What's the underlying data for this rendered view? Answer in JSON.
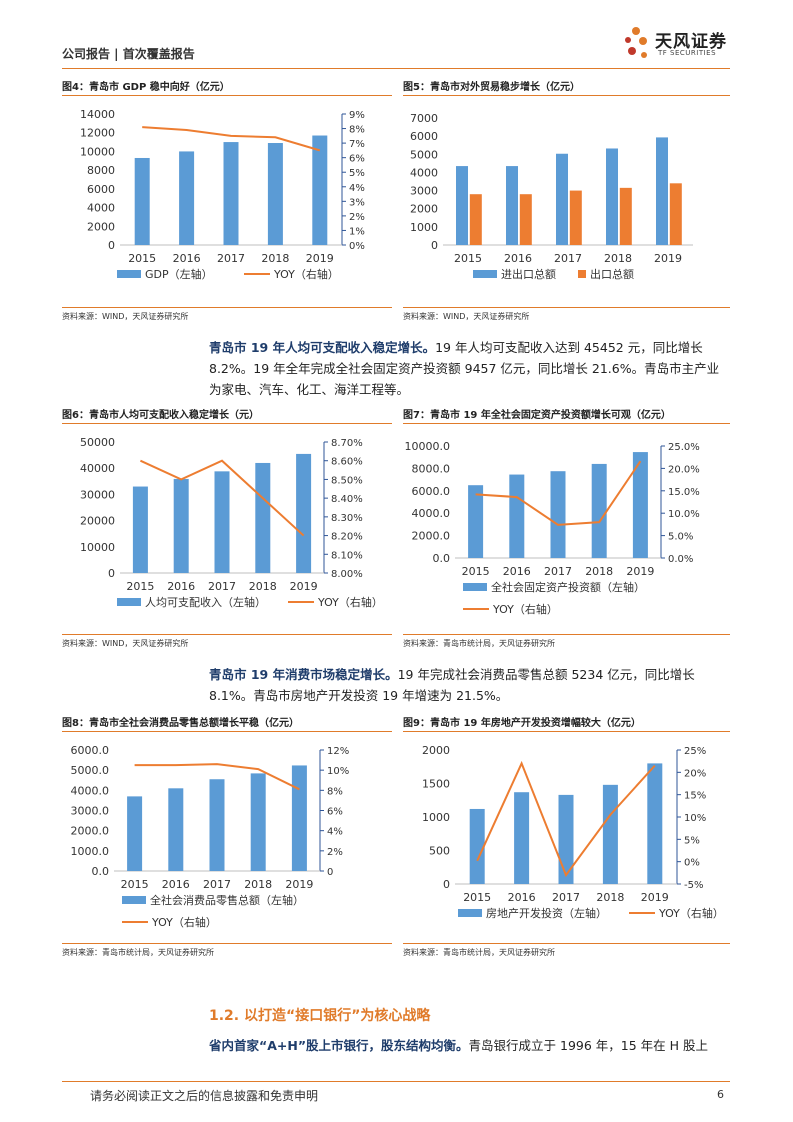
{
  "header": {
    "title": "公司报告 | 首次覆盖报告",
    "logo_cn": "天风证券",
    "logo_en": "TF SECURITIES",
    "logo_icon": "tf-flower-icon"
  },
  "colors": {
    "bar": "#5b9bd5",
    "bar_alt": "#ed7d31",
    "line": "#ed7d31",
    "accent": "#e07b2a",
    "navy": "#1f3d6b"
  },
  "figures": [
    {
      "title": "图4：青岛市 GDP 稳中向好（亿元）",
      "source": "资料来源：WIND，天风证券研究所"
    },
    {
      "title": "图5：青岛市对外贸易稳步增长（亿元）",
      "source": "资料来源：WIND，天风证券研究所"
    },
    {
      "title": "图6：青岛市人均可支配收入稳定增长（元）",
      "source": "资料来源：WIND，天风证券研究所"
    },
    {
      "title": "图7：青岛市 19 年全社会固定资产投资额增长可观（亿元）",
      "source": "资料来源：青岛市统计局，天风证券研究所"
    },
    {
      "title": "图8：青岛市全社会消费品零售总额增长平稳（亿元）",
      "source": "资料来源：青岛市统计局，天风证券研究所"
    },
    {
      "title": "图9：青岛市 19 年房地产开发投资增幅较大（亿元）",
      "source": "资料来源：青岛市统计局，天风证券研究所"
    }
  ],
  "paragraphs": {
    "p1_bold": "青岛市 19 年人均可支配收入稳定增长。",
    "p1_rest": "19 年人均可支配收入达到 45452 元，同比增长 8.2%。19 年全年完成全社会固定资产投资额 9457 亿元，同比增长 21.6%。青岛市主产业为家电、汽车、化工、海洋工程等。",
    "p2_bold": "青岛市 19 年消费市场稳定增长。",
    "p2_rest": "19 年完成社会消费品零售总额 5234 亿元，同比增长 8.1%。青岛市房地产开发投资 19 年增速为 21.5%。",
    "section_heading": "1.2. 以打造“接口银行”为核心战略",
    "p3_bold": "省内首家“A+H”股上市银行，股东结构均衡。",
    "p3_rest": "青岛银行成立于 1996 年，15 年在 H 股上"
  },
  "footer": {
    "disclaimer": "请务必阅读正文之后的信息披露和免责申明",
    "page": "6"
  },
  "chart_data": [
    {
      "type": "bar+line",
      "categories": [
        "2015",
        "2016",
        "2017",
        "2018",
        "2019"
      ],
      "series": [
        {
          "name": "GDP（左轴）",
          "values": [
            9300,
            10000,
            11000,
            10900,
            11700
          ],
          "axis": "left"
        },
        {
          "name": "YOY（右轴）",
          "values": [
            8.1,
            7.9,
            7.5,
            7.4,
            6.5
          ],
          "axis": "right"
        }
      ],
      "left_ticks": [
        "0",
        "2000",
        "4000",
        "6000",
        "8000",
        "10000",
        "12000",
        "14000"
      ],
      "ylim_left": [
        0,
        14000
      ],
      "right_ticks": [
        "0%",
        "1%",
        "2%",
        "3%",
        "4%",
        "5%",
        "6%",
        "7%",
        "8%",
        "9%"
      ],
      "ylim_right": [
        0,
        9
      ]
    },
    {
      "type": "bar",
      "categories": [
        "2015",
        "2016",
        "2017",
        "2018",
        "2019"
      ],
      "series": [
        {
          "name": "进出口总额",
          "values": [
            4350,
            4350,
            5030,
            5320,
            5930
          ]
        },
        {
          "name": "出口总额",
          "values": [
            2800,
            2800,
            3000,
            3150,
            3400
          ]
        }
      ],
      "left_ticks": [
        "0",
        "1000",
        "2000",
        "3000",
        "4000",
        "5000",
        "6000",
        "7000"
      ],
      "ylim_left": [
        0,
        7000
      ]
    },
    {
      "type": "bar+line",
      "categories": [
        "2015",
        "2016",
        "2017",
        "2018",
        "2019"
      ],
      "series": [
        {
          "name": "人均可支配收入（左轴）",
          "values": [
            33000,
            35900,
            38800,
            42000,
            45452
          ],
          "axis": "left"
        },
        {
          "name": "YOY（右轴）",
          "values": [
            8.6,
            8.5,
            8.6,
            8.4,
            8.2
          ],
          "axis": "right"
        }
      ],
      "left_ticks": [
        "0",
        "10000",
        "20000",
        "30000",
        "40000",
        "50000"
      ],
      "ylim_left": [
        0,
        50000
      ],
      "right_ticks": [
        "8.00%",
        "8.10%",
        "8.20%",
        "8.30%",
        "8.40%",
        "8.50%",
        "8.60%",
        "8.70%"
      ],
      "ylim_right": [
        8.0,
        8.7
      ]
    },
    {
      "type": "bar+line",
      "categories": [
        "2015",
        "2016",
        "2017",
        "2018",
        "2019"
      ],
      "series": [
        {
          "name": "全社会固定资产投资额（左轴）",
          "values": [
            6500,
            7450,
            7750,
            8400,
            9457
          ],
          "axis": "left"
        },
        {
          "name": "YOY（右轴）",
          "values": [
            14.2,
            13.6,
            7.4,
            8.0,
            21.6
          ],
          "axis": "right"
        }
      ],
      "left_ticks": [
        "0.0",
        "2000.0",
        "4000.0",
        "6000.0",
        "8000.0",
        "10000.0"
      ],
      "ylim_left": [
        0,
        10000
      ],
      "right_ticks": [
        "0.0%",
        "5.0%",
        "10.0%",
        "15.0%",
        "20.0%",
        "25.0%"
      ],
      "ylim_right": [
        0,
        25
      ]
    },
    {
      "type": "bar+line",
      "categories": [
        "2015",
        "2016",
        "2017",
        "2018",
        "2019"
      ],
      "series": [
        {
          "name": "全社会消费品零售总额（左轴）",
          "values": [
            3700,
            4100,
            4550,
            4840,
            5234
          ],
          "axis": "left"
        },
        {
          "name": "YOY（右轴）",
          "values": [
            10.5,
            10.5,
            10.6,
            10.1,
            8.1
          ],
          "axis": "right"
        }
      ],
      "left_ticks": [
        "0.0",
        "1000.0",
        "2000.0",
        "3000.0",
        "4000.0",
        "5000.0",
        "6000.0"
      ],
      "ylim_left": [
        0,
        6000
      ],
      "right_ticks": [
        "0",
        "2%",
        "4%",
        "6%",
        "8%",
        "10%",
        "12%"
      ],
      "ylim_right": [
        0,
        12
      ]
    },
    {
      "type": "bar+line",
      "categories": [
        "2015",
        "2016",
        "2017",
        "2018",
        "2019"
      ],
      "series": [
        {
          "name": "房地产开发投资（左轴）",
          "values": [
            1120,
            1370,
            1330,
            1480,
            1800
          ],
          "axis": "left"
        },
        {
          "name": "YOY（右轴）",
          "values": [
            0.2,
            22,
            -3,
            10.5,
            21.5
          ],
          "axis": "right"
        }
      ],
      "left_ticks": [
        "0",
        "500",
        "1000",
        "1500",
        "2000"
      ],
      "ylim_left": [
        0,
        2000
      ],
      "right_ticks": [
        "-5%",
        "0%",
        "5%",
        "10%",
        "15%",
        "20%",
        "25%"
      ],
      "ylim_right": [
        -5,
        25
      ]
    }
  ]
}
